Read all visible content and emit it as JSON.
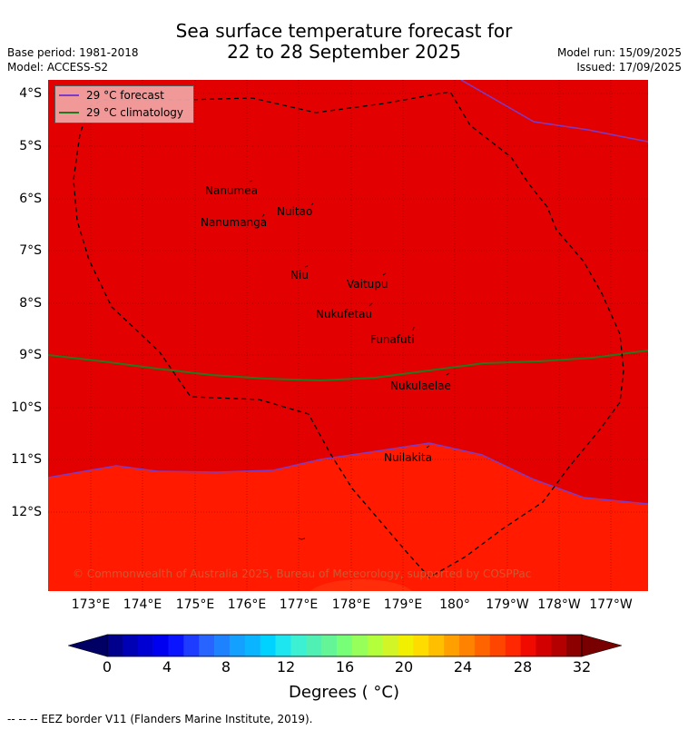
{
  "header": {
    "title_line1": "Sea surface temperature forecast for",
    "title_line2": "22 to 28 September 2025",
    "base_period": "Base period: 1981-2018",
    "model": "Model: ACCESS-S2",
    "model_run": "Model run: 15/09/2025",
    "issued": "Issued: 17/09/2025"
  },
  "colors": {
    "warm_29_31": "#e30000",
    "warm_28_29": "#ff1a00",
    "forecast_line": "#7a3cc8",
    "climatology_line": "#1f7a1f",
    "eez_border": "#000000"
  },
  "map": {
    "lat_ticks": [
      "4°S",
      "5°S",
      "6°S",
      "7°S",
      "8°S",
      "9°S",
      "10°S",
      "11°S",
      "12°S"
    ],
    "lon_ticks": [
      "173°E",
      "174°E",
      "175°E",
      "176°E",
      "177°E",
      "178°E",
      "179°E",
      "180°",
      "179°W",
      "178°W",
      "177°W"
    ],
    "islands": [
      {
        "name": "Nanumea"
      },
      {
        "name": "Nuitao"
      },
      {
        "name": "Nanumanga"
      },
      {
        "name": "Niu"
      },
      {
        "name": "Vaitupu"
      },
      {
        "name": "Nukufetau"
      },
      {
        "name": "Funafuti"
      },
      {
        "name": "Nukulaelae"
      },
      {
        "name": "Nuilakita"
      }
    ],
    "copyright": "© Commonwealth of Australia 2025, Bureau of Meteorology, supported by COSPPac"
  },
  "legend": {
    "forecast_label": "29 °C  forecast",
    "climatology_label": "29 °C  climatology"
  },
  "colorbar": {
    "ticks": [
      "0",
      "4",
      "8",
      "12",
      "16",
      "20",
      "24",
      "28",
      "32"
    ],
    "label": "Degrees ( °C)",
    "colors": [
      "#00008c",
      "#0000b4",
      "#0000d2",
      "#0000f0",
      "#0a14ff",
      "#1e3cff",
      "#2864ff",
      "#1e82ff",
      "#14a0ff",
      "#0ab4ff",
      "#00d2ff",
      "#1ee6f0",
      "#3cf0d2",
      "#50f0b4",
      "#64f596",
      "#78ff78",
      "#96ff5a",
      "#b4ff3c",
      "#d2f528",
      "#f0f000",
      "#ffdc00",
      "#ffbe00",
      "#ffa000",
      "#ff8200",
      "#ff6400",
      "#ff4600",
      "#ff2800",
      "#f00a00",
      "#d20000",
      "#b40000",
      "#8c0000"
    ],
    "under_color": "#000064",
    "over_color": "#780000"
  },
  "footer": {
    "eez_note": "--  --  -- EEZ border V11 (Flanders Marine Institute, 2019)."
  }
}
